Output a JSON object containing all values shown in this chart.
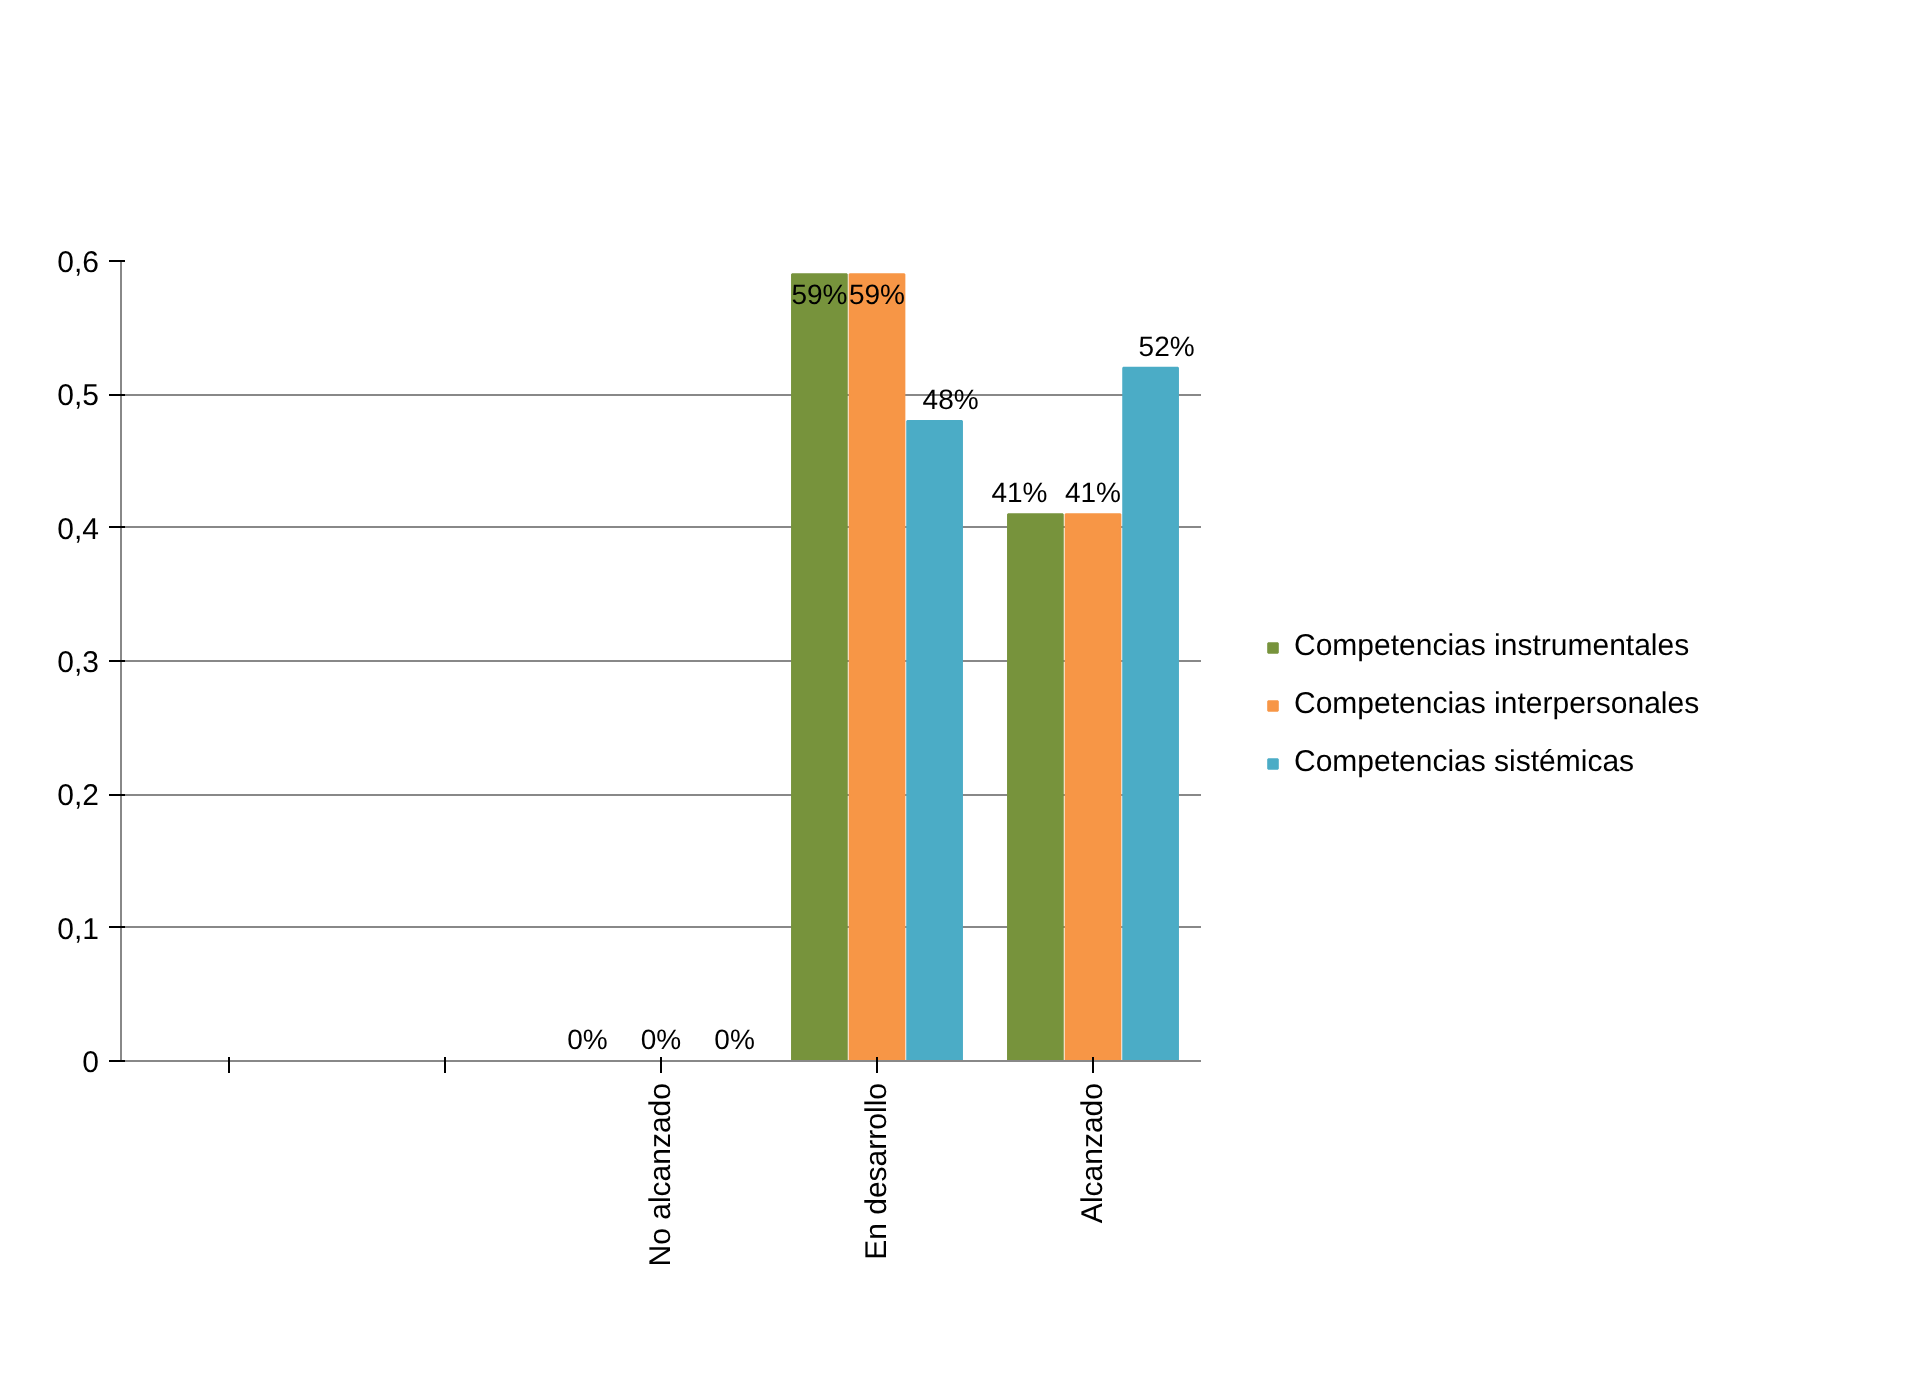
{
  "chart_data": {
    "type": "bar",
    "categories": [
      null,
      null,
      "No alcanzado",
      "En desarrollo",
      "Alcanzado"
    ],
    "series": [
      {
        "name": "Competencias instrumentales",
        "color": "#77933c",
        "values": [
          null,
          null,
          0,
          0.59,
          0.41
        ],
        "value_labels": [
          null,
          null,
          "0%",
          "59%",
          "41%"
        ]
      },
      {
        "name": "Competencias interpersonales",
        "color": "#f79646",
        "values": [
          null,
          null,
          0,
          0.59,
          0.41
        ],
        "value_labels": [
          null,
          null,
          "0%",
          "59%",
          "41%"
        ]
      },
      {
        "name": "Competencias sistémicas",
        "color": "#4bacc6",
        "values": [
          null,
          null,
          0,
          0.48,
          0.52
        ],
        "value_labels": [
          null,
          null,
          "0%",
          "48%",
          "52%"
        ]
      }
    ],
    "ylim": [
      0,
      0.6
    ],
    "yticks": [
      {
        "value": 0,
        "label": "0"
      },
      {
        "value": 0.1,
        "label": "0,1"
      },
      {
        "value": 0.2,
        "label": "0,2"
      },
      {
        "value": 0.3,
        "label": "0,3"
      },
      {
        "value": 0.4,
        "label": "0,4"
      },
      {
        "value": 0.5,
        "label": "0,5"
      },
      {
        "value": 0.6,
        "label": "0,6"
      }
    ],
    "grid": "y",
    "legend": "right"
  }
}
